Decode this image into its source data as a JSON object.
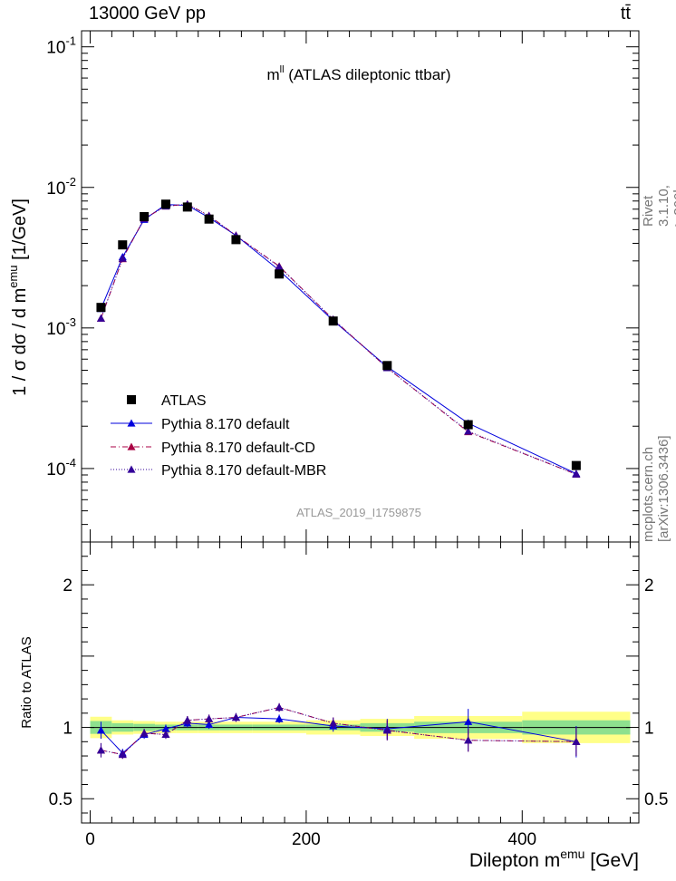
{
  "header": {
    "left": "13000 GeV pp",
    "right": "tt̄"
  },
  "side_text": {
    "rivet": "Rivet 3.1.10, ≥ 300k events",
    "mcplots": "mcplots.cern.ch [arXiv:1306.3436]"
  },
  "colors": {
    "data": "#000000",
    "default": "#0000dd",
    "cd": "#aa0044",
    "mbr": "#330099",
    "band_inner": "#8ee08e",
    "band_outer": "#ffff88"
  },
  "chart_data": [
    {
      "type": "scatter",
      "title": "m^ll (ATLAS dileptonic ttbar)",
      "watermark": "ATLAS_2019_I1759875",
      "ylabel": "1 / σ  dσ / d m^emu [1/GeV]",
      "yscale": "log",
      "ylim": [
        3e-05,
        0.13
      ],
      "xlim": [
        -8,
        508
      ],
      "ytick_labels": [
        "10^-4",
        "10^-3",
        "10^-2",
        "10^-1"
      ],
      "legend_position": "lower-left",
      "x": [
        10,
        30,
        50,
        70,
        90,
        110,
        135,
        175,
        225,
        275,
        350,
        450
      ],
      "series": [
        {
          "name": "ATLAS",
          "style": "square-marker",
          "values": [
            0.0014,
            0.0039,
            0.0062,
            0.0076,
            0.00725,
            0.00595,
            0.00425,
            0.00242,
            0.00112,
            0.00054,
            0.000205,
            0.000105
          ]
        },
        {
          "name": "Pythia 8.170 default",
          "style": "solid-line-triangle",
          "values": [
            0.00137,
            0.0032,
            0.0059,
            0.00755,
            0.00745,
            0.0061,
            0.00455,
            0.00257,
            0.00113,
            0.00053,
            0.00021,
            9.2e-05
          ]
        },
        {
          "name": "Pythia 8.170 default-CD",
          "style": "dashdot-line-triangle",
          "values": [
            0.00117,
            0.0031,
            0.006,
            0.00735,
            0.0076,
            0.0063,
            0.00455,
            0.00275,
            0.00115,
            0.00052,
            0.000182,
            9.1e-05
          ]
        },
        {
          "name": "Pythia 8.170 default-MBR",
          "style": "dotted-line-triangle",
          "values": [
            0.00117,
            0.00312,
            0.006,
            0.00735,
            0.00758,
            0.00628,
            0.00453,
            0.00273,
            0.00115,
            0.00052,
            0.000184,
            9.1e-05
          ]
        }
      ]
    },
    {
      "type": "scatter",
      "ylabel": "Ratio to ATLAS",
      "xlabel": "Dilepton m^emu [GeV]",
      "ylim": [
        0.33,
        2.3
      ],
      "xlim": [
        -8,
        508
      ],
      "yticks": [
        0.5,
        1,
        2
      ],
      "ytick_labels": [
        "0.5",
        "1",
        "2"
      ],
      "xticks": [
        0,
        200,
        400
      ],
      "xtick_labels": [
        "0",
        "200",
        "400"
      ],
      "bin_edges": [
        0,
        20,
        40,
        60,
        80,
        100,
        120,
        150,
        200,
        250,
        300,
        400,
        500
      ],
      "band_inner": [
        0.045,
        0.03,
        0.025,
        0.02,
        0.02,
        0.02,
        0.02,
        0.02,
        0.02,
        0.03,
        0.04,
        0.05
      ],
      "band_outer": [
        0.075,
        0.05,
        0.045,
        0.04,
        0.04,
        0.04,
        0.04,
        0.04,
        0.05,
        0.06,
        0.08,
        0.11
      ],
      "x": [
        10,
        30,
        50,
        70,
        90,
        110,
        135,
        175,
        225,
        275,
        350,
        450
      ],
      "series": [
        {
          "name": "Pythia 8.170 default",
          "values": [
            0.98,
            0.82,
            0.95,
            0.99,
            1.03,
            1.02,
            1.07,
            1.06,
            1.01,
            0.99,
            1.04,
            0.9
          ],
          "errors": [
            0.06,
            0.03,
            0.03,
            0.03,
            0.03,
            0.03,
            0.03,
            0.03,
            0.04,
            0.07,
            0.09,
            0.11
          ]
        },
        {
          "name": "Pythia 8.170 default-CD",
          "values": [
            0.84,
            0.81,
            0.96,
            0.95,
            1.05,
            1.06,
            1.07,
            1.14,
            1.03,
            0.98,
            0.91,
            0.9
          ],
          "errors": [
            0.05,
            0.03,
            0.03,
            0.03,
            0.03,
            0.03,
            0.03,
            0.03,
            0.04,
            0.07,
            0.08,
            0.1
          ]
        },
        {
          "name": "Pythia 8.170 default-MBR",
          "values": [
            0.84,
            0.81,
            0.96,
            0.95,
            1.05,
            1.06,
            1.07,
            1.14,
            1.03,
            0.98,
            0.91,
            0.9
          ],
          "errors": [
            0.05,
            0.03,
            0.03,
            0.03,
            0.03,
            0.03,
            0.03,
            0.03,
            0.04,
            0.07,
            0.08,
            0.1
          ]
        }
      ]
    }
  ]
}
